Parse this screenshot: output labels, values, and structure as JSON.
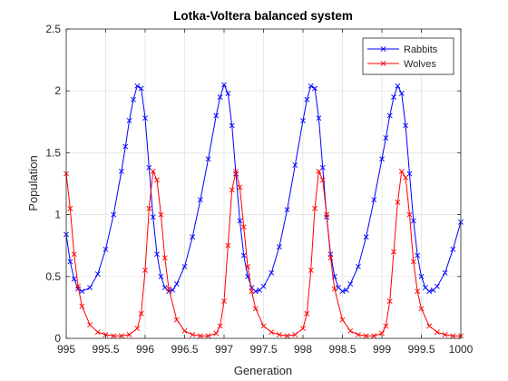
{
  "chart_data": {
    "type": "line",
    "title": "Lotka-Voltera balanced system",
    "xlabel": "Generation",
    "ylabel": "Population",
    "xlim": [
      995,
      1000
    ],
    "ylim": [
      0,
      2.5
    ],
    "xticks": [
      "995",
      "995.5",
      "996",
      "996.5",
      "997",
      "997.5",
      "998",
      "998.5",
      "999",
      "999.5",
      "1000"
    ],
    "yticks": [
      "0",
      "0.5",
      "1",
      "1.5",
      "2",
      "2.5"
    ],
    "grid": true,
    "legend_position": "top-right",
    "marker": "x",
    "series": [
      {
        "name": "Rabbits",
        "color": "#0000ff",
        "x": [
          995.0,
          995.05,
          995.1,
          995.15,
          995.2,
          995.3,
          995.4,
          995.5,
          995.6,
          995.7,
          995.75,
          995.8,
          995.85,
          995.9,
          995.95,
          996.0,
          996.05,
          996.1,
          996.15,
          996.2,
          996.25,
          996.3,
          996.35,
          996.4,
          996.5,
          996.6,
          996.7,
          996.8,
          996.9,
          996.95,
          997.0,
          997.05,
          997.1,
          997.15,
          997.2,
          997.25,
          997.3,
          997.35,
          997.4,
          997.45,
          997.5,
          997.6,
          997.7,
          997.8,
          997.9,
          998.0,
          998.05,
          998.1,
          998.15,
          998.2,
          998.25,
          998.3,
          998.35,
          998.4,
          998.45,
          998.5,
          998.55,
          998.6,
          998.7,
          998.8,
          998.9,
          999.0,
          999.05,
          999.1,
          999.15,
          999.2,
          999.25,
          999.3,
          999.35,
          999.4,
          999.45,
          999.5,
          999.55,
          999.6,
          999.65,
          999.7,
          999.8,
          999.9,
          1000.0
        ],
        "y": [
          0.84,
          0.62,
          0.48,
          0.4,
          0.38,
          0.41,
          0.52,
          0.72,
          1.0,
          1.35,
          1.55,
          1.76,
          1.93,
          2.04,
          2.02,
          1.78,
          1.38,
          0.98,
          0.68,
          0.5,
          0.41,
          0.38,
          0.39,
          0.44,
          0.58,
          0.82,
          1.12,
          1.45,
          1.8,
          1.95,
          2.05,
          1.98,
          1.72,
          1.33,
          0.95,
          0.67,
          0.5,
          0.41,
          0.38,
          0.39,
          0.42,
          0.53,
          0.74,
          1.04,
          1.4,
          1.76,
          1.93,
          2.04,
          2.02,
          1.78,
          1.38,
          0.98,
          0.68,
          0.5,
          0.41,
          0.38,
          0.39,
          0.44,
          0.58,
          0.82,
          1.12,
          1.45,
          1.62,
          1.8,
          1.95,
          2.04,
          1.98,
          1.72,
          1.33,
          0.95,
          0.67,
          0.5,
          0.41,
          0.38,
          0.39,
          0.42,
          0.53,
          0.72,
          0.94
        ]
      },
      {
        "name": "Wolves",
        "color": "#ff0000",
        "x": [
          995.0,
          995.05,
          995.1,
          995.15,
          995.2,
          995.3,
          995.4,
          995.5,
          995.6,
          995.7,
          995.8,
          995.9,
          995.95,
          996.0,
          996.05,
          996.1,
          996.15,
          996.2,
          996.25,
          996.3,
          996.4,
          996.5,
          996.6,
          996.7,
          996.8,
          996.9,
          996.95,
          997.0,
          997.05,
          997.1,
          997.15,
          997.2,
          997.25,
          997.3,
          997.35,
          997.4,
          997.5,
          997.6,
          997.7,
          997.8,
          997.9,
          998.0,
          998.05,
          998.1,
          998.15,
          998.2,
          998.25,
          998.3,
          998.35,
          998.4,
          998.5,
          998.6,
          998.7,
          998.8,
          998.9,
          999.0,
          999.05,
          999.1,
          999.15,
          999.2,
          999.25,
          999.3,
          999.35,
          999.4,
          999.45,
          999.5,
          999.6,
          999.7,
          999.8,
          999.9,
          1000.0
        ],
        "y": [
          1.33,
          1.05,
          0.68,
          0.42,
          0.26,
          0.11,
          0.05,
          0.03,
          0.02,
          0.02,
          0.03,
          0.08,
          0.2,
          0.55,
          1.05,
          1.35,
          1.28,
          1.0,
          0.65,
          0.4,
          0.15,
          0.06,
          0.03,
          0.02,
          0.02,
          0.04,
          0.1,
          0.3,
          0.75,
          1.2,
          1.35,
          1.22,
          0.9,
          0.58,
          0.38,
          0.24,
          0.1,
          0.05,
          0.03,
          0.02,
          0.03,
          0.08,
          0.2,
          0.55,
          1.05,
          1.35,
          1.28,
          1.0,
          0.65,
          0.4,
          0.15,
          0.06,
          0.03,
          0.02,
          0.02,
          0.04,
          0.1,
          0.3,
          0.7,
          1.1,
          1.35,
          1.3,
          1.0,
          0.62,
          0.38,
          0.24,
          0.1,
          0.05,
          0.03,
          0.02,
          0.02
        ]
      }
    ]
  }
}
